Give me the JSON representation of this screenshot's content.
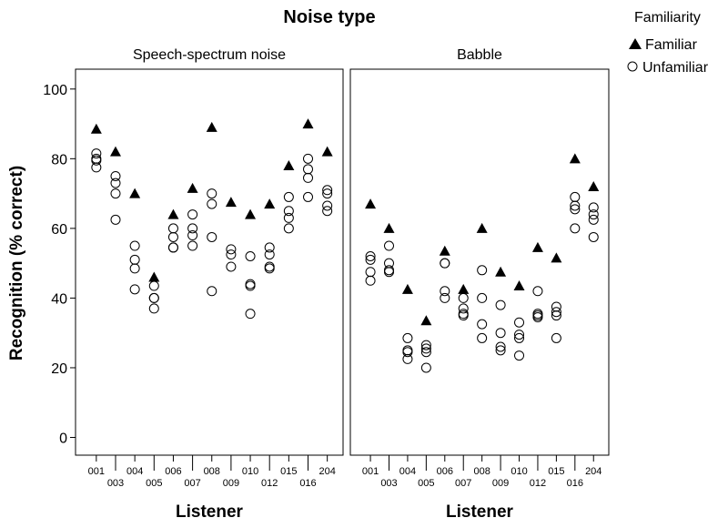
{
  "chart_data": {
    "type": "scatter",
    "title": "Noise type",
    "xlabel": "Listener",
    "ylabel": "Recognition (% correct)",
    "ylim": [
      0,
      100
    ],
    "yticks": [
      0,
      20,
      40,
      60,
      80,
      100
    ],
    "grid": false,
    "legend": {
      "title": "Familiarity",
      "position": "top-right",
      "entries": [
        {
          "label": "Familiar",
          "marker": "filled-triangle"
        },
        {
          "label": "Unfamiliar",
          "marker": "open-circle"
        }
      ]
    },
    "listeners": [
      "001",
      "003",
      "004",
      "005",
      "006",
      "007",
      "008",
      "009",
      "010",
      "012",
      "015",
      "016",
      "204"
    ],
    "panels": [
      {
        "label": "Speech-spectrum noise",
        "familiar": [
          88.5,
          82,
          70,
          46,
          64,
          71.5,
          89,
          67.5,
          64,
          67,
          78,
          90,
          82
        ],
        "unfamiliar": [
          [
            81.5,
            80,
            79.5,
            77.5
          ],
          [
            75,
            73,
            70,
            62.5
          ],
          [
            55,
            51,
            48.5,
            42.5
          ],
          [
            43.5,
            40,
            40,
            37
          ],
          [
            60,
            57.5,
            54.5,
            54.5
          ],
          [
            64,
            60,
            58,
            55
          ],
          [
            70,
            67,
            57.5,
            42
          ],
          [
            54,
            52.5,
            49
          ],
          [
            52,
            44,
            43.5,
            35.5
          ],
          [
            54.5,
            52.5,
            49,
            48.5
          ],
          [
            69,
            65,
            63,
            60
          ],
          [
            80,
            77,
            74.5,
            69
          ],
          [
            71,
            70,
            66.5,
            65
          ]
        ]
      },
      {
        "label": "Babble",
        "familiar": [
          67,
          60,
          42.5,
          33.5,
          53.5,
          42.5,
          60,
          47.5,
          43.5,
          54.5,
          51.5,
          80,
          72
        ],
        "unfamiliar": [
          [
            52,
            51,
            47.5,
            45
          ],
          [
            55,
            50,
            48,
            47.5
          ],
          [
            28.5,
            25,
            24.5,
            22.5
          ],
          [
            26.5,
            25.5,
            24.5,
            20
          ],
          [
            50,
            50,
            42,
            40
          ],
          [
            40,
            37,
            35.5,
            35
          ],
          [
            48,
            40,
            32.5,
            28.5
          ],
          [
            38,
            30,
            26,
            25
          ],
          [
            33,
            29.5,
            28.5,
            23.5
          ],
          [
            42,
            35.5,
            35,
            34.5
          ],
          [
            37.5,
            36,
            35,
            28.5
          ],
          [
            69,
            66.5,
            65.5,
            60
          ],
          [
            66,
            64,
            62.5,
            57.5
          ]
        ]
      }
    ]
  }
}
